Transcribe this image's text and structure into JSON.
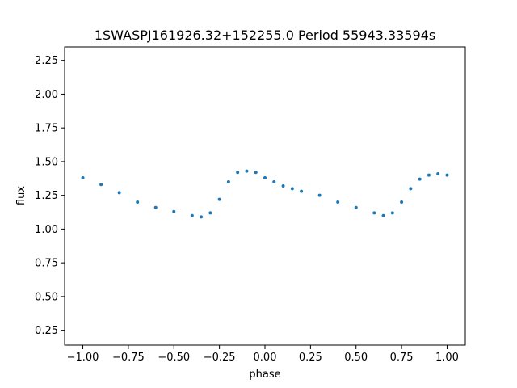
{
  "chart_data": {
    "type": "scatter",
    "title": "1SWASPJ161926.32+152255.0 Period 55943.33594s",
    "xlabel": "phase",
    "ylabel": "flux",
    "xlim": [
      -1.1,
      1.1
    ],
    "ylim": [
      0.14,
      2.35
    ],
    "x_ticks": [
      -1.0,
      -0.75,
      -0.5,
      -0.25,
      0.0,
      0.25,
      0.5,
      0.75,
      1.0
    ],
    "x_tick_labels": [
      "−1.00",
      "−0.75",
      "−0.50",
      "−0.25",
      "0.00",
      "0.25",
      "0.50",
      "0.75",
      "1.00"
    ],
    "y_ticks": [
      0.25,
      0.5,
      0.75,
      1.0,
      1.25,
      1.5,
      1.75,
      2.0,
      2.25
    ],
    "y_tick_labels": [
      "0.25",
      "0.50",
      "0.75",
      "1.00",
      "1.25",
      "1.50",
      "1.75",
      "2.00",
      "2.25"
    ],
    "grid": false,
    "legend": "none",
    "marker_color": "#1f77b4",
    "series": [
      {
        "x": [
          -1.0,
          -0.9,
          -0.8,
          -0.7,
          -0.6,
          -0.5,
          -0.4,
          -0.35,
          -0.3,
          -0.25,
          -0.2,
          -0.15,
          -0.1,
          -0.05,
          0.0,
          0.05,
          0.1,
          0.15,
          0.2,
          0.3,
          0.4,
          0.5,
          0.6,
          0.65,
          0.7,
          0.75,
          0.8,
          0.85,
          0.9,
          0.95,
          1.0
        ],
        "y": [
          1.38,
          1.33,
          1.27,
          1.2,
          1.16,
          1.13,
          1.1,
          1.09,
          1.12,
          1.22,
          1.35,
          1.42,
          1.43,
          1.42,
          1.38,
          1.35,
          1.32,
          1.3,
          1.28,
          1.25,
          1.2,
          1.16,
          1.12,
          1.1,
          1.12,
          1.2,
          1.3,
          1.37,
          1.4,
          1.41,
          1.4
        ]
      }
    ]
  }
}
